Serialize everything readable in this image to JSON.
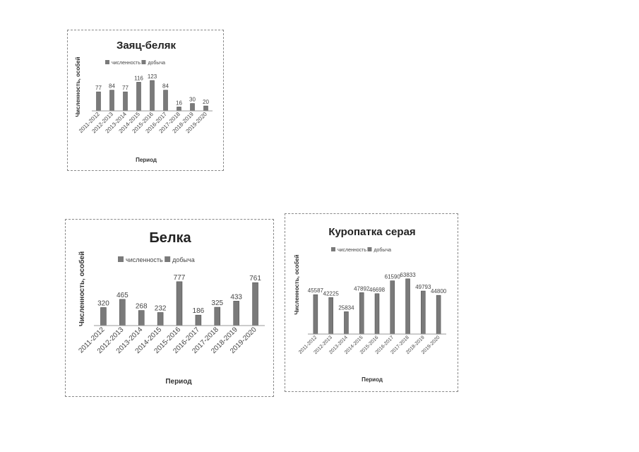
{
  "colors": {
    "bar": "#7a7a7a",
    "bar_dark": "#444444",
    "axis": "#999999",
    "text": "#444444"
  },
  "chart_data": [
    {
      "type": "bar",
      "title": "Заяц-беляк",
      "legend": [
        "численность",
        "добыча"
      ],
      "legend_position": "top",
      "xlabel": "Период",
      "ylabel": "Численность, особей",
      "categories": [
        "2011-2012",
        "2012-2013",
        "2013-2014",
        "2014-2015",
        "2015-2016",
        "2016-2017",
        "2017-2018",
        "2018-2019",
        "2019-2020"
      ],
      "series": [
        {
          "name": "численность",
          "values": [
            77,
            84,
            77,
            116,
            123,
            84,
            16,
            30,
            20
          ]
        }
      ],
      "ylim": [
        0,
        160
      ]
    },
    {
      "type": "bar",
      "title": "Белка",
      "legend": [
        "численность",
        "добыча"
      ],
      "legend_position": "top",
      "xlabel": "Период",
      "ylabel": "Численность, особей",
      "categories": [
        "2011-2012",
        "2012-2013",
        "2013-2014",
        "2014-2015",
        "2015-2016",
        "2016-2017",
        "2017-2018",
        "2018-2019",
        "2019-2020"
      ],
      "series": [
        {
          "name": "численность",
          "values": [
            320,
            465,
            268,
            232,
            777,
            186,
            325,
            433,
            761
          ]
        }
      ],
      "ylim": [
        0,
        1000
      ]
    },
    {
      "type": "bar",
      "title": "Куропатка серая",
      "legend": [
        "численность",
        "добыча"
      ],
      "legend_position": "top",
      "xlabel": "Период",
      "ylabel": "Численность, особей",
      "categories": [
        "2011-2012",
        "2012-2013",
        "2013-2014",
        "2014-2015",
        "2015-2016",
        "2016-2017",
        "2017-2018",
        "2018-2019",
        "2019-2020"
      ],
      "series": [
        {
          "name": "численность",
          "values": [
            45587,
            42225,
            25834,
            47892,
            46698,
            61590,
            63833,
            49793,
            44800
          ]
        }
      ],
      "ylim": [
        0,
        80000
      ]
    }
  ]
}
